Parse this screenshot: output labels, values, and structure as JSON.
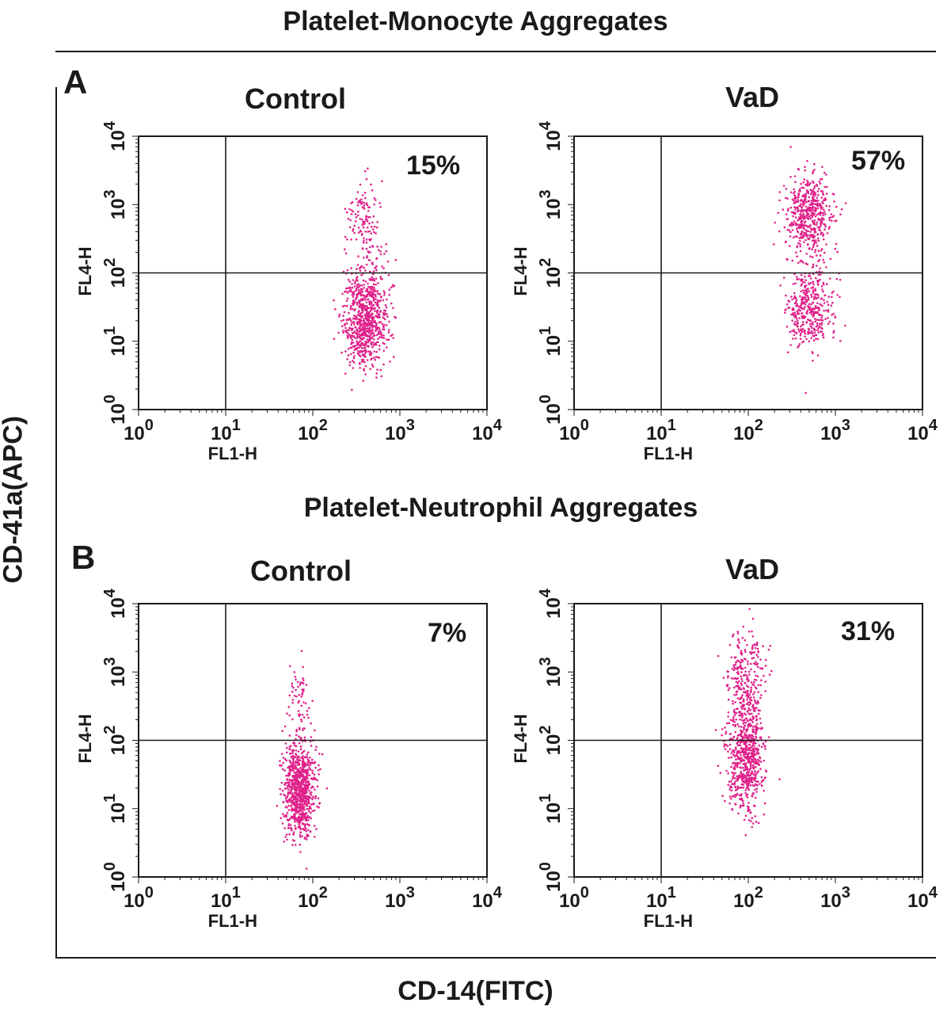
{
  "figure": {
    "section_a_title": "Platelet-Monocyte Aggregates",
    "section_b_title": "Platelet-Neutrophil Aggregates",
    "panel_a_letter": "A",
    "panel_b_letter": "B",
    "y_axis_title": "CD-41a(APC)",
    "x_axis_title": "CD-14(FITC)"
  },
  "colors": {
    "dots": "#e0218a",
    "axes": "#1a1a1a",
    "background": "#ffffff"
  },
  "chart_data": [
    {
      "type": "scatter",
      "panel": "A",
      "title": "Control",
      "xlabel": "FL1-H",
      "ylabel": "FL4-H",
      "xscale": "log",
      "yscale": "log",
      "xlim": [
        1,
        10000
      ],
      "ylim": [
        1,
        10000
      ],
      "x_ticks": [
        "10^0",
        "10^1",
        "10^2",
        "10^3",
        "10^4"
      ],
      "y_ticks": [
        "10^0",
        "10^1",
        "10^2",
        "10^3",
        "10^4"
      ],
      "quadrant_gate": {
        "x": 10,
        "y": 100
      },
      "annotation": "15%",
      "populations": [
        {
          "center": [
            400,
            22
          ],
          "spread_decades": [
            0.13,
            0.35
          ],
          "weight": 0.85
        },
        {
          "center": [
            400,
            450
          ],
          "spread_decades": [
            0.1,
            0.35
          ],
          "weight": 0.15
        }
      ]
    },
    {
      "type": "scatter",
      "panel": "A",
      "title": "VaD",
      "xlabel": "FL1-H",
      "ylabel": "FL4-H",
      "xscale": "log",
      "yscale": "log",
      "xlim": [
        1,
        10000
      ],
      "ylim": [
        1,
        10000
      ],
      "x_ticks": [
        "10^0",
        "10^1",
        "10^2",
        "10^3",
        "10^4"
      ],
      "y_ticks": [
        "10^0",
        "10^1",
        "10^2",
        "10^3",
        "10^4"
      ],
      "quadrant_gate": {
        "x": 10,
        "y": 100
      },
      "annotation": "57%",
      "populations": [
        {
          "center": [
            500,
            700
          ],
          "spread_decades": [
            0.13,
            0.3
          ],
          "weight": 0.57
        },
        {
          "center": [
            500,
            30
          ],
          "spread_decades": [
            0.13,
            0.3
          ],
          "weight": 0.43
        }
      ]
    },
    {
      "type": "scatter",
      "panel": "B",
      "title": "Control",
      "xlabel": "FL1-H",
      "ylabel": "FL4-H",
      "xscale": "log",
      "yscale": "log",
      "xlim": [
        1,
        10000
      ],
      "ylim": [
        1,
        10000
      ],
      "x_ticks": [
        "10^0",
        "10^1",
        "10^2",
        "10^3",
        "10^4"
      ],
      "y_ticks": [
        "10^0",
        "10^1",
        "10^2",
        "10^3",
        "10^4"
      ],
      "quadrant_gate": {
        "x": 10,
        "y": 100
      },
      "annotation": "7%",
      "populations": [
        {
          "center": [
            70,
            20
          ],
          "spread_decades": [
            0.09,
            0.35
          ],
          "weight": 0.93
        },
        {
          "center": [
            70,
            450
          ],
          "spread_decades": [
            0.08,
            0.3
          ],
          "weight": 0.07
        }
      ]
    },
    {
      "type": "scatter",
      "panel": "B",
      "title": "VaD",
      "xlabel": "FL1-H",
      "ylabel": "FL4-H",
      "xscale": "log",
      "yscale": "log",
      "xlim": [
        1,
        10000
      ],
      "ylim": [
        1,
        10000
      ],
      "x_ticks": [
        "10^0",
        "10^1",
        "10^2",
        "10^3",
        "10^4"
      ],
      "y_ticks": [
        "10^0",
        "10^1",
        "10^2",
        "10^3",
        "10^4"
      ],
      "quadrant_gate": {
        "x": 10,
        "y": 100
      },
      "annotation": "31%",
      "populations": [
        {
          "center": [
            95,
            800
          ],
          "spread_decades": [
            0.11,
            0.4
          ],
          "weight": 0.31
        },
        {
          "center": [
            95,
            50
          ],
          "spread_decades": [
            0.11,
            0.4
          ],
          "weight": 0.69
        }
      ]
    }
  ]
}
